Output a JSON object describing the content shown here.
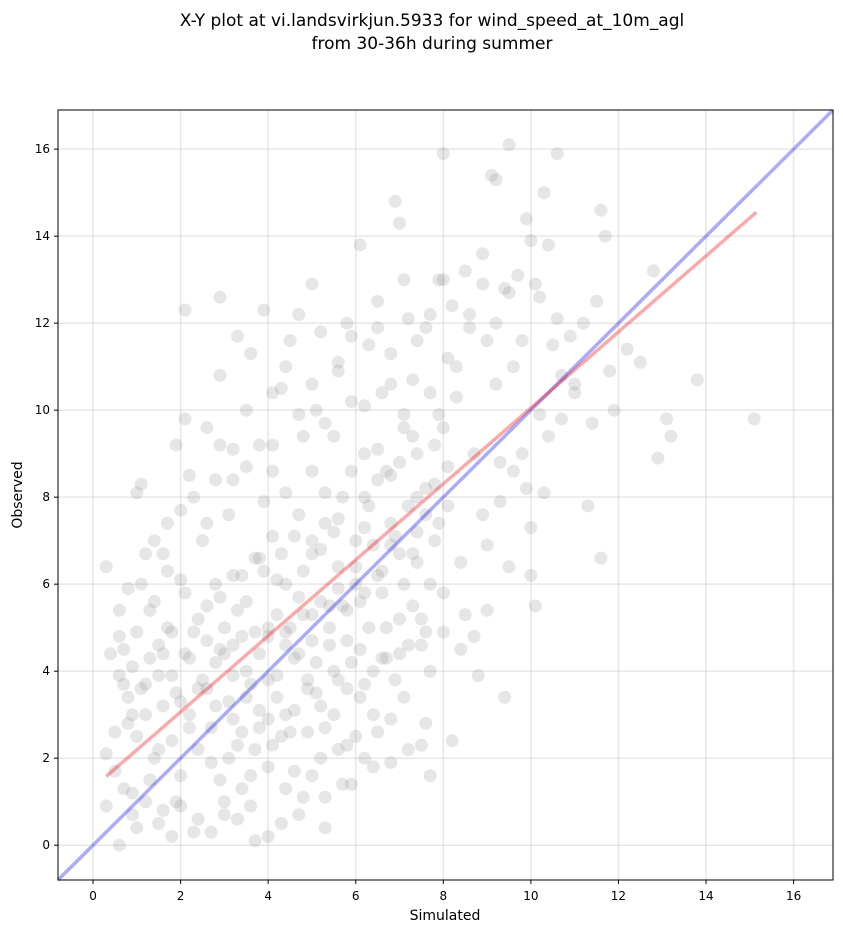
{
  "chart_data": {
    "type": "scatter",
    "title_line1": "X-Y plot at vi.landsvirkjun.5933 for wind_speed_at_10m_agl",
    "title_line2": "from 30-36h during summer",
    "xlabel": "Simulated",
    "ylabel": "Observed",
    "xlim": [
      -0.8,
      16.9
    ],
    "ylim": [
      -0.8,
      16.9
    ],
    "xticks": [
      0,
      2,
      4,
      6,
      8,
      10,
      12,
      14,
      16
    ],
    "yticks": [
      0,
      2,
      4,
      6,
      8,
      10,
      12,
      14,
      16
    ],
    "grid": true,
    "colors": {
      "points": "#808080",
      "identity_line": "#0000ee",
      "fit_line": "#ee0000"
    },
    "identity_line": {
      "x": [
        -0.8,
        16.9
      ],
      "y": [
        -0.8,
        16.9
      ]
    },
    "fit_line": {
      "x": [
        0.3,
        15.15
      ],
      "y": [
        1.58,
        14.55
      ]
    },
    "points": [
      [
        0.3,
        6.4
      ],
      [
        0.3,
        0.9
      ],
      [
        0.3,
        2.1
      ],
      [
        0.4,
        4.4
      ],
      [
        0.5,
        1.7
      ],
      [
        0.6,
        5.4
      ],
      [
        0.6,
        4.8
      ],
      [
        0.6,
        0.0
      ],
      [
        0.7,
        3.7
      ],
      [
        0.8,
        5.9
      ],
      [
        0.8,
        2.8
      ],
      [
        0.9,
        4.1
      ],
      [
        0.9,
        1.2
      ],
      [
        1.0,
        0.4
      ],
      [
        1.0,
        8.1
      ],
      [
        1.1,
        8.3
      ],
      [
        1.2,
        6.7
      ],
      [
        1.2,
        3.0
      ],
      [
        1.3,
        1.5
      ],
      [
        1.4,
        5.6
      ],
      [
        1.5,
        4.6
      ],
      [
        1.5,
        2.2
      ],
      [
        1.6,
        6.7
      ],
      [
        1.6,
        0.8
      ],
      [
        1.7,
        7.4
      ],
      [
        1.8,
        3.9
      ],
      [
        1.9,
        9.2
      ],
      [
        1.9,
        1.0
      ],
      [
        2.0,
        6.1
      ],
      [
        2.1,
        12.3
      ],
      [
        2.1,
        9.8
      ],
      [
        2.1,
        4.4
      ],
      [
        2.2,
        8.5
      ],
      [
        2.2,
        2.7
      ],
      [
        2.3,
        0.3
      ],
      [
        2.4,
        5.2
      ],
      [
        2.5,
        7.0
      ],
      [
        2.6,
        9.6
      ],
      [
        2.6,
        3.6
      ],
      [
        2.7,
        1.9
      ],
      [
        2.8,
        8.4
      ],
      [
        2.8,
        6.0
      ],
      [
        2.9,
        10.8
      ],
      [
        2.9,
        4.5
      ],
      [
        2.9,
        12.6
      ],
      [
        3.0,
        0.7
      ],
      [
        3.1,
        7.6
      ],
      [
        3.2,
        9.1
      ],
      [
        3.2,
        2.9
      ],
      [
        3.3,
        11.7
      ],
      [
        3.3,
        5.4
      ],
      [
        3.4,
        1.3
      ],
      [
        3.5,
        8.7
      ],
      [
        3.5,
        4.0
      ],
      [
        3.6,
        11.3
      ],
      [
        3.7,
        6.6
      ],
      [
        3.7,
        0.1
      ],
      [
        3.8,
        3.1
      ],
      [
        3.9,
        12.3
      ],
      [
        3.9,
        7.9
      ],
      [
        4.0,
        5.0
      ],
      [
        4.0,
        1.8
      ],
      [
        4.1,
        9.2
      ],
      [
        4.1,
        10.4
      ],
      [
        4.2,
        6.1
      ],
      [
        4.2,
        3.4
      ],
      [
        4.3,
        0.5
      ],
      [
        4.3,
        10.5
      ],
      [
        4.4,
        8.1
      ],
      [
        4.4,
        4.6
      ],
      [
        4.5,
        11.6
      ],
      [
        4.5,
        2.6
      ],
      [
        4.6,
        7.1
      ],
      [
        4.7,
        5.7
      ],
      [
        4.7,
        12.2
      ],
      [
        4.8,
        9.4
      ],
      [
        4.8,
        1.1
      ],
      [
        4.9,
        3.8
      ],
      [
        5.0,
        12.9
      ],
      [
        5.0,
        6.7
      ],
      [
        5.0,
        8.6
      ],
      [
        5.1,
        10.0
      ],
      [
        5.1,
        4.2
      ],
      [
        5.2,
        2.0
      ],
      [
        5.2,
        11.8
      ],
      [
        5.3,
        7.4
      ],
      [
        5.3,
        0.4
      ],
      [
        5.4,
        5.5
      ],
      [
        5.5,
        9.4
      ],
      [
        5.5,
        3.0
      ],
      [
        5.6,
        11.1
      ],
      [
        5.6,
        6.4
      ],
      [
        5.7,
        8.0
      ],
      [
        5.7,
        1.4
      ],
      [
        5.8,
        12.0
      ],
      [
        5.8,
        4.7
      ],
      [
        5.9,
        10.2
      ],
      [
        6.0,
        7.0
      ],
      [
        6.0,
        2.5
      ],
      [
        6.1,
        13.8
      ],
      [
        6.1,
        5.6
      ],
      [
        6.2,
        9.0
      ],
      [
        6.2,
        3.7
      ],
      [
        6.3,
        11.5
      ],
      [
        6.3,
        7.8
      ],
      [
        6.4,
        1.8
      ],
      [
        6.5,
        6.2
      ],
      [
        6.5,
        12.5
      ],
      [
        6.6,
        10.4
      ],
      [
        6.6,
        4.3
      ],
      [
        6.7,
        8.6
      ],
      [
        6.8,
        2.9
      ],
      [
        6.8,
        11.3
      ],
      [
        6.9,
        14.8
      ],
      [
        6.9,
        7.1
      ],
      [
        7.0,
        5.2
      ],
      [
        7.0,
        14.3
      ],
      [
        7.1,
        9.6
      ],
      [
        7.1,
        3.4
      ],
      [
        7.2,
        12.1
      ],
      [
        7.3,
        6.7
      ],
      [
        7.3,
        10.7
      ],
      [
        7.4,
        8.0
      ],
      [
        7.5,
        4.6
      ],
      [
        7.5,
        2.3
      ],
      [
        7.6,
        11.9
      ],
      [
        7.7,
        6.0
      ],
      [
        7.7,
        1.6
      ],
      [
        7.8,
        9.2
      ],
      [
        7.9,
        13.0
      ],
      [
        7.9,
        7.4
      ],
      [
        8.0,
        15.9
      ],
      [
        8.0,
        4.9
      ],
      [
        8.1,
        11.2
      ],
      [
        8.1,
        8.7
      ],
      [
        8.2,
        12.4
      ],
      [
        8.2,
        2.4
      ],
      [
        8.3,
        10.3
      ],
      [
        8.4,
        6.5
      ],
      [
        8.5,
        13.2
      ],
      [
        8.5,
        5.3
      ],
      [
        8.6,
        11.9
      ],
      [
        8.7,
        9.0
      ],
      [
        8.8,
        3.9
      ],
      [
        8.9,
        13.6
      ],
      [
        8.9,
        7.6
      ],
      [
        9.0,
        11.6
      ],
      [
        9.0,
        5.4
      ],
      [
        9.1,
        15.4
      ],
      [
        9.2,
        10.6
      ],
      [
        9.2,
        15.3
      ],
      [
        9.3,
        8.8
      ],
      [
        9.4,
        12.8
      ],
      [
        9.4,
        3.4
      ],
      [
        9.5,
        16.1
      ],
      [
        9.5,
        6.4
      ],
      [
        9.6,
        11.0
      ],
      [
        9.7,
        13.1
      ],
      [
        9.8,
        9.0
      ],
      [
        9.9,
        14.4
      ],
      [
        9.9,
        8.2
      ],
      [
        10.0,
        13.9
      ],
      [
        10.0,
        6.2
      ],
      [
        10.1,
        5.5
      ],
      [
        10.2,
        12.6
      ],
      [
        10.2,
        9.9
      ],
      [
        10.3,
        15.0
      ],
      [
        10.4,
        13.8
      ],
      [
        10.4,
        9.4
      ],
      [
        10.6,
        12.1
      ],
      [
        10.6,
        15.9
      ],
      [
        10.7,
        10.8
      ],
      [
        10.9,
        11.7
      ],
      [
        11.0,
        10.4
      ],
      [
        11.2,
        12.0
      ],
      [
        11.3,
        7.8
      ],
      [
        11.5,
        12.5
      ],
      [
        11.6,
        14.6
      ],
      [
        11.6,
        6.6
      ],
      [
        11.7,
        14.0
      ],
      [
        11.8,
        10.9
      ],
      [
        11.9,
        10.0
      ],
      [
        12.2,
        11.4
      ],
      [
        12.5,
        11.1
      ],
      [
        12.8,
        13.2
      ],
      [
        12.9,
        8.9
      ],
      [
        13.1,
        9.8
      ],
      [
        13.2,
        9.4
      ],
      [
        13.8,
        10.7
      ],
      [
        15.1,
        9.8
      ],
      [
        1.0,
        2.5
      ],
      [
        1.1,
        3.6
      ],
      [
        1.3,
        4.3
      ],
      [
        1.4,
        2.0
      ],
      [
        1.6,
        3.2
      ],
      [
        1.7,
        5.0
      ],
      [
        1.8,
        2.4
      ],
      [
        1.9,
        3.5
      ],
      [
        2.0,
        1.6
      ],
      [
        2.1,
        5.8
      ],
      [
        2.2,
        3.0
      ],
      [
        2.3,
        4.9
      ],
      [
        2.4,
        2.2
      ],
      [
        2.5,
        3.8
      ],
      [
        2.6,
        5.5
      ],
      [
        2.7,
        2.7
      ],
      [
        2.8,
        4.2
      ],
      [
        2.9,
        1.5
      ],
      [
        3.0,
        5.0
      ],
      [
        3.1,
        3.3
      ],
      [
        3.2,
        4.6
      ],
      [
        3.3,
        2.3
      ],
      [
        3.4,
        6.2
      ],
      [
        3.5,
        3.4
      ],
      [
        3.6,
        1.6
      ],
      [
        3.7,
        4.9
      ],
      [
        3.8,
        2.7
      ],
      [
        3.9,
        6.3
      ],
      [
        4.0,
        3.8
      ],
      [
        4.1,
        2.3
      ],
      [
        4.2,
        5.3
      ],
      [
        4.3,
        6.7
      ],
      [
        4.4,
        3.0
      ],
      [
        4.5,
        5.0
      ],
      [
        4.6,
        1.7
      ],
      [
        4.7,
        4.4
      ],
      [
        4.8,
        6.3
      ],
      [
        4.9,
        2.6
      ],
      [
        5.0,
        5.3
      ],
      [
        5.1,
        3.5
      ],
      [
        5.2,
        6.8
      ],
      [
        5.3,
        2.7
      ],
      [
        5.4,
        4.6
      ],
      [
        5.5,
        7.2
      ],
      [
        5.6,
        3.8
      ],
      [
        5.7,
        5.5
      ],
      [
        5.8,
        2.3
      ],
      [
        5.9,
        4.2
      ],
      [
        6.0,
        6.0
      ],
      [
        6.1,
        3.4
      ],
      [
        6.2,
        7.3
      ],
      [
        6.3,
        5.0
      ],
      [
        6.4,
        3.0
      ],
      [
        6.5,
        8.4
      ],
      [
        6.6,
        5.8
      ],
      [
        6.7,
        4.3
      ],
      [
        6.8,
        6.9
      ],
      [
        6.9,
        3.8
      ],
      [
        7.0,
        8.8
      ],
      [
        7.1,
        6.0
      ],
      [
        7.2,
        4.6
      ],
      [
        7.3,
        9.4
      ],
      [
        7.4,
        6.5
      ],
      [
        7.5,
        5.2
      ],
      [
        7.6,
        8.2
      ],
      [
        7.7,
        4.0
      ],
      [
        7.8,
        7.0
      ],
      [
        7.9,
        9.9
      ],
      [
        8.0,
        5.8
      ],
      [
        8.1,
        7.8
      ],
      [
        0.5,
        2.6
      ],
      [
        0.7,
        1.3
      ],
      [
        0.8,
        3.4
      ],
      [
        0.9,
        0.7
      ],
      [
        1.2,
        1.0
      ],
      [
        1.5,
        0.5
      ],
      [
        1.8,
        0.2
      ],
      [
        2.0,
        0.9
      ],
      [
        2.4,
        0.6
      ],
      [
        2.7,
        0.3
      ],
      [
        3.0,
        1.0
      ],
      [
        3.3,
        0.6
      ],
      [
        3.6,
        0.9
      ],
      [
        4.0,
        0.2
      ],
      [
        4.4,
        1.3
      ],
      [
        4.7,
        0.7
      ],
      [
        5.0,
        1.6
      ],
      [
        5.3,
        1.1
      ],
      [
        5.6,
        2.2
      ],
      [
        5.9,
        1.4
      ],
      [
        6.2,
        2.0
      ],
      [
        6.5,
        2.6
      ],
      [
        6.8,
        1.9
      ],
      [
        7.2,
        2.2
      ],
      [
        7.6,
        2.8
      ],
      [
        1.1,
        6.0
      ],
      [
        1.4,
        7.0
      ],
      [
        1.7,
        6.3
      ],
      [
        2.0,
        7.7
      ],
      [
        2.3,
        8.0
      ],
      [
        2.6,
        7.4
      ],
      [
        2.9,
        9.2
      ],
      [
        3.2,
        8.4
      ],
      [
        3.5,
        10.0
      ],
      [
        3.8,
        9.2
      ],
      [
        4.1,
        8.6
      ],
      [
        4.4,
        11.0
      ],
      [
        4.7,
        9.9
      ],
      [
        5.0,
        10.6
      ],
      [
        5.3,
        9.7
      ],
      [
        5.6,
        10.9
      ],
      [
        5.9,
        11.7
      ],
      [
        6.2,
        10.1
      ],
      [
        6.5,
        11.9
      ],
      [
        6.8,
        10.6
      ],
      [
        7.1,
        13.0
      ],
      [
        7.4,
        11.6
      ],
      [
        7.7,
        12.2
      ],
      [
        8.0,
        13.0
      ],
      [
        8.3,
        11.0
      ],
      [
        8.6,
        12.2
      ],
      [
        8.9,
        12.9
      ],
      [
        9.2,
        12.0
      ],
      [
        9.5,
        12.7
      ],
      [
        9.8,
        11.6
      ],
      [
        10.1,
        12.9
      ],
      [
        10.5,
        11.5
      ],
      [
        8.4,
        4.5
      ],
      [
        8.7,
        4.8
      ],
      [
        9.0,
        6.9
      ],
      [
        9.3,
        7.9
      ],
      [
        9.6,
        8.6
      ],
      [
        10.0,
        7.3
      ],
      [
        10.3,
        8.1
      ],
      [
        10.7,
        9.8
      ],
      [
        11.0,
        10.6
      ],
      [
        11.4,
        9.7
      ],
      [
        0.6,
        3.9
      ],
      [
        0.7,
        4.5
      ],
      [
        0.9,
        3.0
      ],
      [
        1.0,
        4.9
      ],
      [
        1.2,
        3.7
      ],
      [
        1.3,
        5.4
      ],
      [
        1.5,
        3.9
      ],
      [
        1.6,
        4.4
      ],
      [
        1.8,
        4.9
      ],
      [
        2.0,
        3.3
      ],
      [
        2.2,
        4.3
      ],
      [
        2.4,
        3.6
      ],
      [
        2.6,
        4.7
      ],
      [
        2.8,
        3.2
      ],
      [
        3.0,
        4.4
      ],
      [
        3.2,
        3.9
      ],
      [
        3.4,
        4.8
      ],
      [
        3.6,
        3.7
      ],
      [
        3.8,
        4.4
      ],
      [
        4.0,
        4.8
      ],
      [
        4.2,
        3.9
      ],
      [
        4.4,
        4.9
      ],
      [
        4.6,
        4.3
      ],
      [
        4.8,
        5.3
      ],
      [
        5.0,
        4.7
      ],
      [
        5.2,
        5.6
      ],
      [
        5.4,
        5.0
      ],
      [
        5.6,
        5.9
      ],
      [
        5.8,
        5.4
      ],
      [
        6.0,
        6.4
      ],
      [
        6.2,
        5.8
      ],
      [
        6.4,
        6.9
      ],
      [
        6.6,
        6.3
      ],
      [
        6.8,
        7.4
      ],
      [
        7.0,
        6.7
      ],
      [
        7.2,
        7.8
      ],
      [
        7.4,
        7.2
      ],
      [
        7.6,
        7.6
      ],
      [
        7.8,
        8.3
      ],
      [
        3.1,
        2.0
      ],
      [
        3.4,
        2.6
      ],
      [
        3.7,
        2.2
      ],
      [
        4.0,
        2.9
      ],
      [
        4.3,
        2.5
      ],
      [
        4.6,
        3.1
      ],
      [
        4.9,
        3.6
      ],
      [
        5.2,
        3.2
      ],
      [
        5.5,
        4.0
      ],
      [
        5.8,
        3.6
      ],
      [
        6.1,
        4.5
      ],
      [
        6.4,
        4.0
      ],
      [
        6.7,
        5.0
      ],
      [
        7.0,
        4.4
      ],
      [
        7.3,
        5.5
      ],
      [
        7.6,
        4.9
      ],
      [
        2.9,
        5.7
      ],
      [
        3.2,
        6.2
      ],
      [
        3.5,
        5.6
      ],
      [
        3.8,
        6.6
      ],
      [
        4.1,
        7.1
      ],
      [
        4.4,
        6.0
      ],
      [
        4.7,
        7.6
      ],
      [
        5.0,
        7.0
      ],
      [
        5.3,
        8.1
      ],
      [
        5.6,
        7.5
      ],
      [
        5.9,
        8.6
      ],
      [
        6.2,
        8.0
      ],
      [
        6.5,
        9.1
      ],
      [
        6.8,
        8.5
      ],
      [
        7.1,
        9.9
      ],
      [
        7.4,
        9.0
      ],
      [
        7.7,
        10.4
      ],
      [
        8.0,
        9.6
      ]
    ]
  }
}
